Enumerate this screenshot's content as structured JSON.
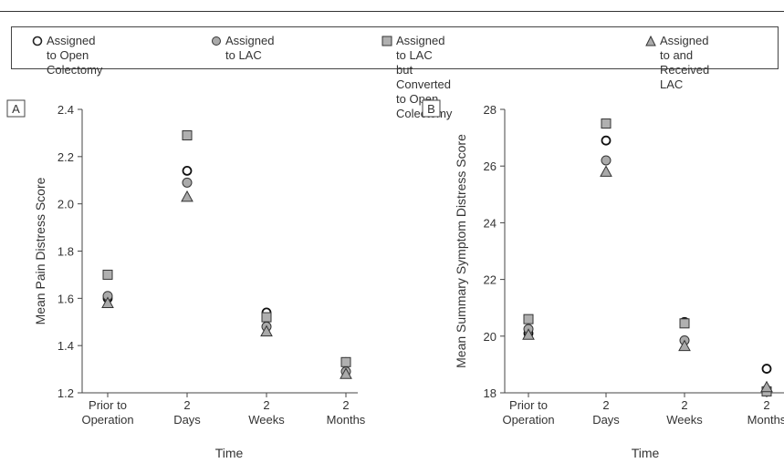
{
  "legend": [
    {
      "line1": "Assigned to Open",
      "line2": "Colectomy",
      "marker": "circle-open"
    },
    {
      "line1": "Assigned to LAC",
      "line2": "",
      "marker": "circle-gray"
    },
    {
      "line1": "Assigned to LAC but Converted",
      "line2": "to Open Colectomy",
      "marker": "square-gray"
    },
    {
      "line1": "Assigned to and",
      "line2": "Received LAC",
      "marker": "triangle-gray"
    }
  ],
  "colors": {
    "open_fill": "#ffffff",
    "gray_fill": "#aaaaaa",
    "square_fill": "#b0b0b0",
    "stroke": "#333333"
  },
  "chart_data": [
    {
      "type": "scatter",
      "panel_label": "A",
      "ylabel": "Mean Pain Distress Score",
      "xlabel": "Time",
      "categories": [
        [
          "Prior to",
          "Operation"
        ],
        [
          "2",
          "Days"
        ],
        [
          "2",
          "Weeks"
        ],
        [
          "2",
          "Months"
        ]
      ],
      "ylim": [
        1.2,
        2.4
      ],
      "yticks": [
        "1.2",
        "1.4",
        "1.6",
        "1.8",
        "2.0",
        "2.2",
        "2.4"
      ],
      "series": [
        {
          "name": "Assigned to Open Colectomy",
          "marker": "circle-open",
          "values": [
            1.6,
            2.14,
            1.54,
            1.33
          ]
        },
        {
          "name": "Assigned to LAC",
          "marker": "circle-gray",
          "values": [
            1.61,
            2.09,
            1.48,
            1.29
          ]
        },
        {
          "name": "Assigned to LAC but Converted to Open Colectomy",
          "marker": "square-gray",
          "values": [
            1.7,
            2.29,
            1.52,
            1.33
          ]
        },
        {
          "name": "Assigned to and Received LAC",
          "marker": "triangle-gray",
          "values": [
            1.58,
            2.03,
            1.46,
            1.28
          ]
        }
      ]
    },
    {
      "type": "scatter",
      "panel_label": "B",
      "ylabel": "Mean Summary Symptom Distress Score",
      "xlabel": "Time",
      "categories": [
        [
          "Prior to",
          "Operation"
        ],
        [
          "2",
          "Days"
        ],
        [
          "2",
          "Weeks"
        ],
        [
          "2",
          "Months"
        ]
      ],
      "ylim": [
        18,
        28
      ],
      "yticks": [
        "18",
        "20",
        "22",
        "24",
        "26",
        "28"
      ],
      "series": [
        {
          "name": "Assigned to Open Colectomy",
          "marker": "circle-open",
          "values": [
            20.1,
            26.9,
            20.5,
            18.85
          ]
        },
        {
          "name": "Assigned to LAC",
          "marker": "circle-gray",
          "values": [
            20.25,
            26.2,
            19.85,
            18.1
          ]
        },
        {
          "name": "Assigned to LAC but Converted to Open Colectomy",
          "marker": "square-gray",
          "values": [
            20.6,
            27.5,
            20.45,
            18.05
          ]
        },
        {
          "name": "Assigned to and Received LAC",
          "marker": "triangle-gray",
          "values": [
            20.05,
            25.8,
            19.65,
            18.2
          ]
        }
      ]
    }
  ]
}
